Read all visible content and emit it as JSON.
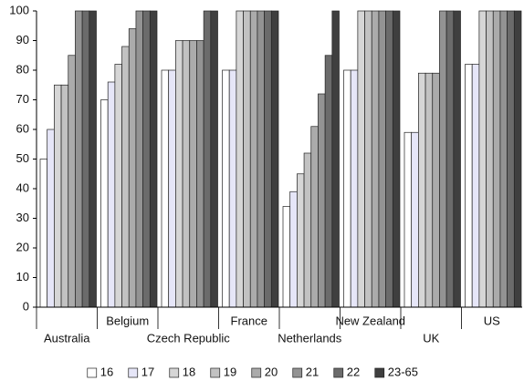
{
  "chart_data": {
    "type": "bar",
    "categories": [
      "Australia",
      "Belgium",
      "Czech Republic",
      "France",
      "Netherlands",
      "New Zealand",
      "UK",
      "US"
    ],
    "series": [
      {
        "name": "16",
        "color": "#ffffff",
        "values": [
          50,
          70,
          80,
          80,
          34,
          80,
          59,
          82
        ]
      },
      {
        "name": "17",
        "color": "#e6e6f8",
        "values": [
          60,
          76,
          80,
          80,
          39,
          80,
          59,
          82
        ]
      },
      {
        "name": "18",
        "color": "#d6d6d6",
        "values": [
          75,
          82,
          90,
          100,
          45,
          100,
          79,
          100
        ]
      },
      {
        "name": "19",
        "color": "#c2c2c2",
        "values": [
          75,
          88,
          90,
          100,
          52,
          100,
          79,
          100
        ]
      },
      {
        "name": "20",
        "color": "#ababab",
        "values": [
          85,
          94,
          90,
          100,
          61,
          100,
          79,
          100
        ]
      },
      {
        "name": "21",
        "color": "#939393",
        "values": [
          100,
          100,
          90,
          100,
          72,
          100,
          100,
          100
        ]
      },
      {
        "name": "22",
        "color": "#6b6b6b",
        "values": [
          100,
          100,
          100,
          100,
          85,
          100,
          100,
          100
        ]
      },
      {
        "name": "23-65",
        "color": "#3f3f3f",
        "values": [
          100,
          100,
          100,
          100,
          100,
          100,
          100,
          100
        ]
      }
    ],
    "ylim": [
      0,
      100
    ],
    "yticks": [
      0,
      10,
      20,
      30,
      40,
      50,
      60,
      70,
      80,
      90,
      100
    ],
    "grid": false,
    "legend": "bottom"
  }
}
